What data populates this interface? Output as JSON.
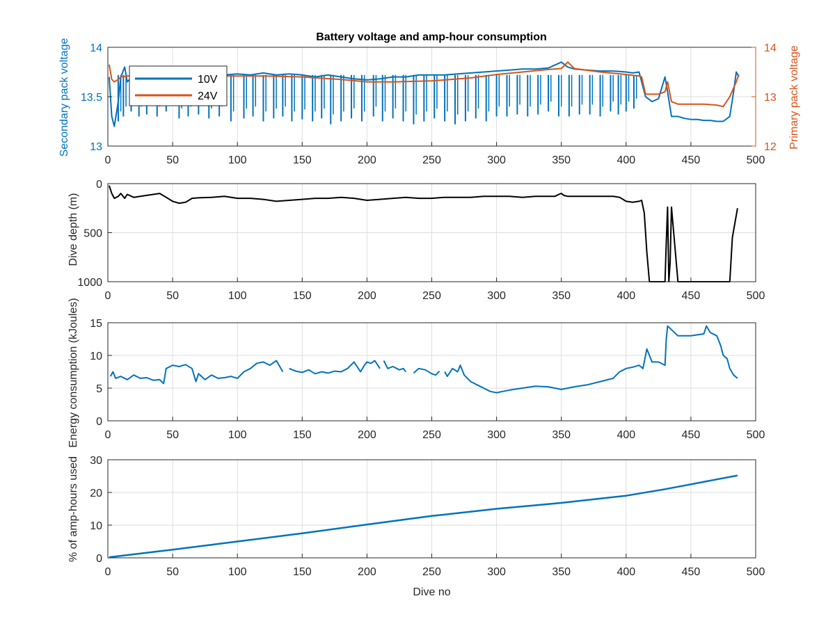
{
  "title": "Battery voltage and amp-hour consumption",
  "colors": {
    "blue": "#0072BD",
    "orange": "#D95319",
    "black": "#000000",
    "grid": "#dedede",
    "axis": "#262626"
  },
  "chart_data": [
    {
      "type": "line",
      "title": "Battery voltage and amp-hour consumption",
      "xlabel": "",
      "ylabel": "Secondary pack voltage",
      "ylabel_right": "Primary pack voltage",
      "xlim": [
        0,
        500
      ],
      "ylim": [
        13,
        14
      ],
      "ylim_right": [
        12,
        14
      ],
      "x_ticks": [
        0,
        50,
        100,
        150,
        200,
        250,
        300,
        350,
        400,
        450,
        500
      ],
      "y_ticks": [
        13,
        13.5,
        14
      ],
      "y_ticks_right": [
        12,
        13,
        14
      ],
      "grid": true,
      "legend": "top-left",
      "series": [
        {
          "name": "10V",
          "axis": "left",
          "x": [
            1,
            3,
            5,
            8,
            10,
            13,
            15,
            20,
            25,
            30,
            35,
            40,
            45,
            50,
            55,
            60,
            70,
            80,
            90,
            100,
            110,
            120,
            130,
            140,
            150,
            160,
            170,
            180,
            190,
            200,
            210,
            220,
            230,
            240,
            250,
            260,
            270,
            280,
            290,
            300,
            310,
            320,
            330,
            340,
            350,
            355,
            360,
            370,
            380,
            390,
            400,
            405,
            410,
            415,
            420,
            425,
            430,
            432,
            435,
            440,
            445,
            450,
            455,
            460,
            465,
            470,
            475,
            480,
            483,
            485,
            487
          ],
          "y": [
            13.7,
            13.3,
            13.2,
            13.45,
            13.7,
            13.8,
            13.65,
            13.72,
            13.7,
            13.72,
            13.7,
            13.68,
            13.7,
            13.72,
            13.7,
            13.72,
            13.7,
            13.72,
            13.72,
            13.73,
            13.72,
            13.74,
            13.72,
            13.73,
            13.72,
            13.7,
            13.72,
            13.7,
            13.68,
            13.67,
            13.68,
            13.7,
            13.7,
            13.72,
            13.72,
            13.72,
            13.73,
            13.74,
            13.75,
            13.76,
            13.77,
            13.78,
            13.78,
            13.79,
            13.85,
            13.8,
            13.78,
            13.77,
            13.76,
            13.76,
            13.75,
            13.74,
            13.75,
            13.5,
            13.45,
            13.48,
            13.7,
            13.55,
            13.3,
            13.3,
            13.28,
            13.27,
            13.27,
            13.26,
            13.26,
            13.25,
            13.25,
            13.3,
            13.55,
            13.75,
            13.7
          ],
          "dips_x": [
            8,
            12,
            18,
            24,
            30,
            38,
            45,
            55,
            62,
            70,
            78,
            86,
            95,
            105,
            112,
            120,
            128,
            135,
            142,
            150,
            158,
            165,
            172,
            180,
            188,
            196,
            205,
            212,
            220,
            228,
            236,
            244,
            252,
            260,
            268,
            276,
            284,
            292,
            300,
            308,
            316,
            324,
            332,
            340,
            348,
            356,
            364,
            372,
            380,
            388,
            394,
            400,
            406
          ],
          "dips_y": [
            13.25,
            13.3,
            13.35,
            13.3,
            13.32,
            13.3,
            13.35,
            13.28,
            13.3,
            13.32,
            13.28,
            13.3,
            13.25,
            13.28,
            13.3,
            13.25,
            13.28,
            13.3,
            13.25,
            13.27,
            13.25,
            13.28,
            13.22,
            13.25,
            13.28,
            13.25,
            13.3,
            13.25,
            13.28,
            13.25,
            13.22,
            13.25,
            13.28,
            13.25,
            13.22,
            13.25,
            13.28,
            13.25,
            13.3,
            13.3,
            13.32,
            13.3,
            13.32,
            13.35,
            13.3,
            13.3,
            13.32,
            13.32,
            13.3,
            13.35,
            13.32,
            13.35,
            13.38
          ]
        },
        {
          "name": "24V",
          "axis": "right",
          "x": [
            1,
            3,
            5,
            8,
            10,
            15,
            20,
            30,
            40,
            50,
            60,
            80,
            100,
            120,
            150,
            180,
            200,
            220,
            250,
            280,
            300,
            320,
            340,
            350,
            355,
            360,
            380,
            400,
            410,
            412,
            415,
            420,
            425,
            430,
            432,
            435,
            440,
            450,
            460,
            470,
            475,
            480,
            485,
            487
          ],
          "y": [
            13.65,
            13.35,
            13.3,
            13.35,
            13.4,
            13.42,
            13.42,
            13.4,
            13.4,
            13.42,
            13.42,
            13.42,
            13.42,
            13.42,
            13.4,
            13.35,
            13.3,
            13.3,
            13.32,
            13.38,
            13.45,
            13.5,
            13.55,
            13.57,
            13.7,
            13.57,
            13.5,
            13.45,
            13.42,
            13.4,
            13.05,
            13.05,
            13.05,
            13.1,
            13.3,
            12.9,
            12.85,
            12.85,
            12.85,
            12.83,
            12.8,
            13.0,
            13.3,
            13.45
          ]
        }
      ]
    },
    {
      "type": "line",
      "xlabel": "",
      "ylabel": "Dive depth (m)",
      "xlim": [
        0,
        500
      ],
      "ylim": [
        0,
        1000
      ],
      "y_reversed": true,
      "x_ticks": [
        0,
        50,
        100,
        150,
        200,
        250,
        300,
        350,
        400,
        450,
        500
      ],
      "y_ticks": [
        0,
        500,
        1000
      ],
      "grid": true,
      "series": [
        {
          "x": [
            1,
            3,
            5,
            8,
            10,
            13,
            15,
            20,
            25,
            30,
            35,
            40,
            45,
            50,
            55,
            60,
            65,
            70,
            80,
            90,
            100,
            110,
            120,
            130,
            140,
            150,
            160,
            170,
            180,
            190,
            200,
            210,
            220,
            230,
            240,
            250,
            260,
            270,
            280,
            290,
            300,
            310,
            320,
            330,
            340,
            345,
            348,
            350,
            352,
            355,
            360,
            370,
            380,
            390,
            395,
            400,
            405,
            410,
            412,
            414,
            416,
            418,
            420,
            425,
            428,
            430,
            431,
            432,
            433,
            434,
            435,
            440,
            450,
            460,
            470,
            475,
            477,
            478,
            480,
            482,
            484,
            486
          ],
          "y": [
            20,
            100,
            150,
            130,
            100,
            150,
            110,
            140,
            130,
            120,
            110,
            100,
            140,
            180,
            200,
            190,
            150,
            145,
            140,
            130,
            150,
            150,
            160,
            180,
            170,
            160,
            150,
            150,
            140,
            150,
            170,
            160,
            150,
            140,
            150,
            150,
            140,
            140,
            140,
            130,
            130,
            130,
            140,
            130,
            130,
            130,
            110,
            100,
            120,
            130,
            130,
            130,
            130,
            130,
            140,
            180,
            190,
            180,
            170,
            300,
            700,
            1000,
            1000,
            1000,
            1000,
            1000,
            600,
            240,
            1000,
            800,
            240,
            1000,
            1000,
            1000,
            1000,
            1000,
            1000,
            1000,
            1000,
            550,
            400,
            250
          ]
        }
      ]
    },
    {
      "type": "line",
      "xlabel": "",
      "ylabel": "Energy consumption (kJoules)",
      "xlim": [
        0,
        500
      ],
      "ylim": [
        0,
        15
      ],
      "x_ticks": [
        0,
        50,
        100,
        150,
        200,
        250,
        300,
        350,
        400,
        450,
        500
      ],
      "y_ticks": [
        0,
        5,
        10,
        15
      ],
      "grid": true,
      "series": [
        {
          "segments": [
            {
              "x": [
                2,
                4,
                6,
                10,
                15,
                20,
                25,
                30,
                35,
                40,
                43,
                45,
                50,
                55,
                60,
                65,
                68,
                70,
                75,
                80,
                85,
                90,
                95,
                100,
                105,
                110,
                115,
                120,
                125,
                130,
                135
              ],
              "y": [
                6.8,
                7.5,
                6.5,
                6.8,
                6.3,
                7.0,
                6.5,
                6.6,
                6.2,
                6.3,
                5.7,
                8.0,
                8.5,
                8.3,
                8.6,
                8.0,
                6.0,
                7.2,
                6.3,
                7.0,
                6.5,
                6.6,
                6.8,
                6.5,
                7.5,
                8.0,
                8.8,
                9.0,
                8.5,
                9.2,
                7.5
              ]
            },
            {
              "x": [
                140,
                145,
                150,
                155,
                160,
                165,
                170,
                175,
                180,
                185,
                190,
                195,
                198,
                200,
                203,
                206,
                210
              ],
              "y": [
                8.0,
                7.6,
                7.4,
                7.8,
                7.2,
                7.5,
                7.3,
                7.6,
                7.5,
                8.0,
                9.0,
                7.5,
                8.5,
                9.0,
                8.8,
                9.2,
                8.0
              ]
            },
            {
              "x": [
                213,
                216,
                220,
                225,
                228,
                230
              ],
              "y": [
                9.2,
                8.0,
                8.3,
                7.8,
                8.0,
                7.5
              ]
            },
            {
              "x": [
                236,
                240,
                245,
                250,
                253,
                256
              ],
              "y": [
                7.3,
                8.0,
                7.8,
                7.2,
                7.0,
                7.6
              ]
            },
            {
              "x": [
                260,
                262,
                266,
                270,
                272,
                275,
                280,
                285,
                290,
                295,
                300,
                310,
                320,
                330,
                340,
                350,
                360,
                370,
                380,
                390,
                395,
                400,
                405,
                410,
                413,
                416,
                420,
                425,
                430,
                431,
                432,
                440,
                450,
                460,
                462,
                465,
                470,
                473,
                475,
                478,
                480,
                483,
                486
              ],
              "y": [
                7.5,
                6.8,
                8.0,
                7.5,
                8.5,
                7.0,
                6.0,
                5.5,
                5.0,
                4.5,
                4.3,
                4.7,
                5.0,
                5.3,
                5.2,
                4.8,
                5.2,
                5.5,
                6.0,
                6.5,
                7.5,
                8.0,
                8.2,
                8.5,
                8.0,
                11.0,
                9.0,
                9.0,
                8.5,
                12.5,
                14.5,
                13.0,
                13.0,
                13.3,
                14.5,
                13.5,
                13.0,
                11.5,
                10.0,
                9.5,
                8.0,
                7.0,
                6.5
              ]
            }
          ]
        }
      ]
    },
    {
      "type": "line",
      "xlabel": "Dive no",
      "ylabel": "% of amp-hours used",
      "xlim": [
        0,
        500
      ],
      "ylim": [
        0,
        30
      ],
      "x_ticks": [
        0,
        50,
        100,
        150,
        200,
        250,
        300,
        350,
        400,
        450,
        500
      ],
      "y_ticks": [
        0,
        10,
        20,
        30
      ],
      "grid": true,
      "series": [
        {
          "x": [
            1,
            50,
            100,
            150,
            200,
            250,
            300,
            350,
            400,
            430,
            450,
            470,
            486
          ],
          "y": [
            0.2,
            2.5,
            5.0,
            7.5,
            10.2,
            12.8,
            15.0,
            16.8,
            19.0,
            21.0,
            22.5,
            24.0,
            25.2
          ]
        }
      ]
    }
  ]
}
